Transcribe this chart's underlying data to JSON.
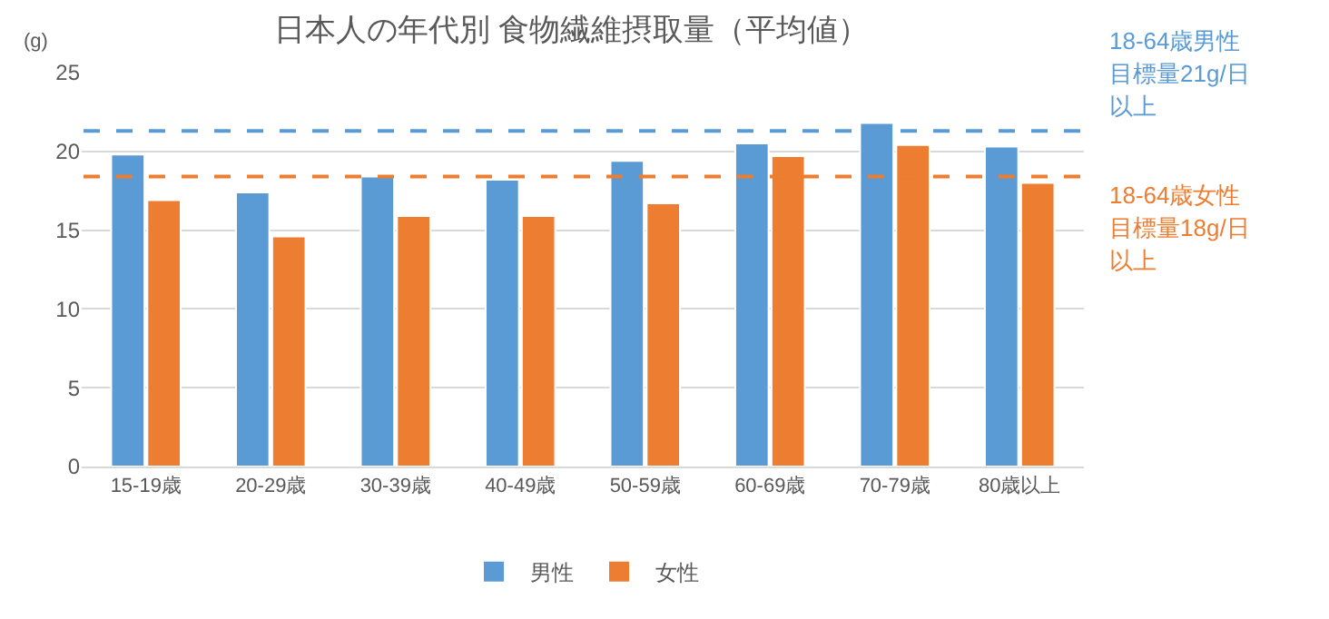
{
  "chart_data": {
    "type": "bar",
    "title": "日本人の年代別 食物繊維摂取量（平均値）",
    "ylabel": "(g)",
    "categories": [
      "15-19歳",
      "20-29歳",
      "30-39歳",
      "40-49歳",
      "50-59歳",
      "60-69歳",
      "70-79歳",
      "80歳以上"
    ],
    "series": [
      {
        "name": "男性",
        "color": "#5b9bd5",
        "values": [
          19.8,
          17.4,
          18.4,
          18.2,
          19.4,
          20.5,
          21.8,
          20.3
        ]
      },
      {
        "name": "女性",
        "color": "#ed7d31",
        "values": [
          16.9,
          14.6,
          15.9,
          15.9,
          16.7,
          19.7,
          20.4,
          18.0
        ]
      }
    ],
    "ylim": [
      0,
      25
    ],
    "yticks": [
      0,
      5,
      10,
      15,
      20,
      25
    ],
    "grid": "y",
    "legend": "bottom",
    "ref_lines": [
      {
        "axis": "y",
        "value": 21.3,
        "label": "18-64歳男性目標量21g/日以上",
        "color": "#5b9bd5",
        "line_style": "dashed"
      },
      {
        "axis": "y",
        "value": 18.4,
        "label": "18-64歳女性目標量18g/日以上",
        "color": "#ed7d31",
        "line_style": "dashed"
      }
    ]
  }
}
